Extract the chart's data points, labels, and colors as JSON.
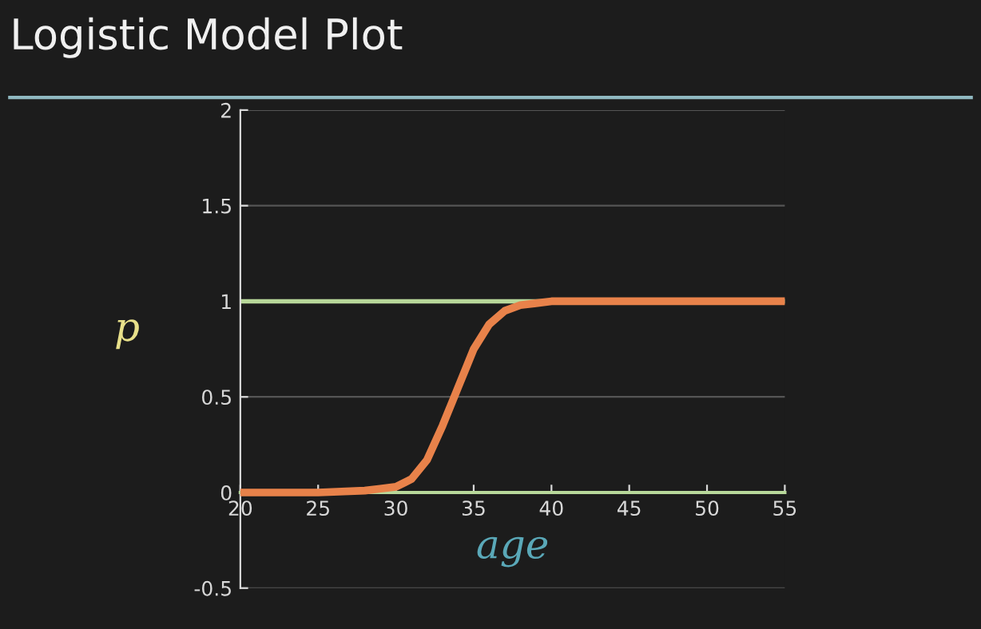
{
  "chart_data": {
    "type": "line",
    "title": "Logistic Model Plot",
    "xlabel": "age",
    "ylabel": "p",
    "x": [
      20,
      25,
      28,
      29,
      30,
      31,
      32,
      33,
      33.5,
      34,
      34.5,
      35,
      36,
      37,
      38,
      39,
      40,
      42,
      45,
      50,
      55
    ],
    "series": [
      {
        "color": "#e8824a",
        "values": [
          0,
          0,
          0.01,
          0.02,
          0.03,
          0.07,
          0.17,
          0.35,
          0.45,
          0.55,
          0.65,
          0.75,
          0.88,
          0.95,
          0.98,
          0.99,
          1,
          1,
          1,
          1,
          1
        ]
      }
    ],
    "xlim": [
      20,
      55
    ],
    "xticks": [
      20,
      25,
      30,
      35,
      40,
      45,
      50,
      55
    ],
    "ylim": [
      -0.5,
      2
    ],
    "yticks": [
      -0.5,
      0,
      0.5,
      1,
      1.5,
      2
    ],
    "grid": "y",
    "marker": "none",
    "line_style": "solid",
    "ref_lines": [
      {
        "axis": "y",
        "value": 1,
        "color": "#b8d89a"
      }
    ]
  }
}
